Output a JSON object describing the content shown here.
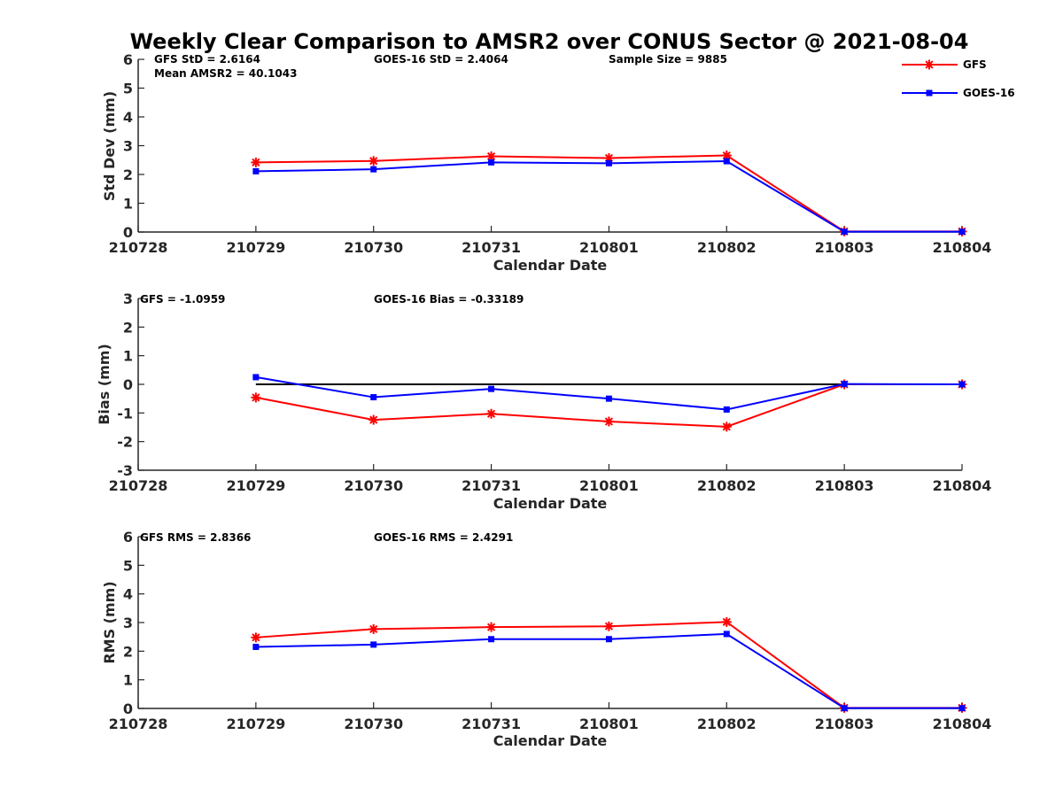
{
  "title": "Weekly Clear Comparison to AMSR2 over CONUS Sector @ 2021-08-04",
  "legend": {
    "position": "top-right",
    "entries": [
      {
        "label": "GFS",
        "color": "#ff0000",
        "marker": "asterisk"
      },
      {
        "label": "GOES-16",
        "color": "#0000ff",
        "marker": "square"
      }
    ]
  },
  "panels": [
    {
      "annotations": [
        "GFS StD = 2.6164",
        "Mean AMSR2 = 40.1043",
        "GOES-16 StD = 2.4064",
        "Sample Size = 9885"
      ]
    },
    {
      "annotations": [
        "GFS = -1.0959",
        "GOES-16 Bias  = -0.33189"
      ]
    },
    {
      "annotations": [
        "GFS RMS = 2.8366",
        "GOES-16 RMS = 2.4291"
      ]
    }
  ],
  "chart_data": [
    {
      "type": "line",
      "xlabel": "Calendar Date",
      "ylabel": "Std Dev (mm)",
      "categories": [
        "210728",
        "210729",
        "210730",
        "210731",
        "210801",
        "210802",
        "210803",
        "210804"
      ],
      "ylim": [
        0,
        6
      ],
      "yticks": [
        0,
        1,
        2,
        3,
        4,
        5,
        6
      ],
      "grid": false,
      "series": [
        {
          "name": "GFS",
          "color": "#ff0000",
          "marker": "asterisk",
          "values": [
            null,
            2.42,
            2.47,
            2.63,
            2.57,
            2.66,
            0.02,
            0.02
          ]
        },
        {
          "name": "GOES-16",
          "color": "#0000ff",
          "marker": "square",
          "values": [
            null,
            2.11,
            2.18,
            2.42,
            2.39,
            2.46,
            0.01,
            0.01
          ]
        }
      ]
    },
    {
      "type": "line",
      "xlabel": "Calendar Date",
      "ylabel": "Bias (mm)",
      "categories": [
        "210728",
        "210729",
        "210730",
        "210731",
        "210801",
        "210802",
        "210803",
        "210804"
      ],
      "ylim": [
        -3,
        3
      ],
      "yticks": [
        -3,
        -2,
        -1,
        0,
        1,
        2,
        3
      ],
      "grid": false,
      "reference_line": 0,
      "series": [
        {
          "name": "GFS",
          "color": "#ff0000",
          "marker": "asterisk",
          "values": [
            null,
            -0.46,
            -1.24,
            -1.03,
            -1.3,
            -1.48,
            0.0,
            0.0
          ]
        },
        {
          "name": "GOES-16",
          "color": "#0000ff",
          "marker": "square",
          "values": [
            null,
            0.25,
            -0.45,
            -0.16,
            -0.5,
            -0.88,
            0.01,
            0.0
          ]
        }
      ]
    },
    {
      "type": "line",
      "xlabel": "Calendar Date",
      "ylabel": "RMS (mm)",
      "categories": [
        "210728",
        "210729",
        "210730",
        "210731",
        "210801",
        "210802",
        "210803",
        "210804"
      ],
      "ylim": [
        0,
        6
      ],
      "yticks": [
        0,
        1,
        2,
        3,
        4,
        5,
        6
      ],
      "grid": false,
      "series": [
        {
          "name": "GFS",
          "color": "#ff0000",
          "marker": "asterisk",
          "values": [
            null,
            2.48,
            2.77,
            2.84,
            2.87,
            3.02,
            0.02,
            0.02
          ]
        },
        {
          "name": "GOES-16",
          "color": "#0000ff",
          "marker": "square",
          "values": [
            null,
            2.15,
            2.23,
            2.42,
            2.42,
            2.6,
            0.01,
            0.01
          ]
        }
      ]
    }
  ]
}
